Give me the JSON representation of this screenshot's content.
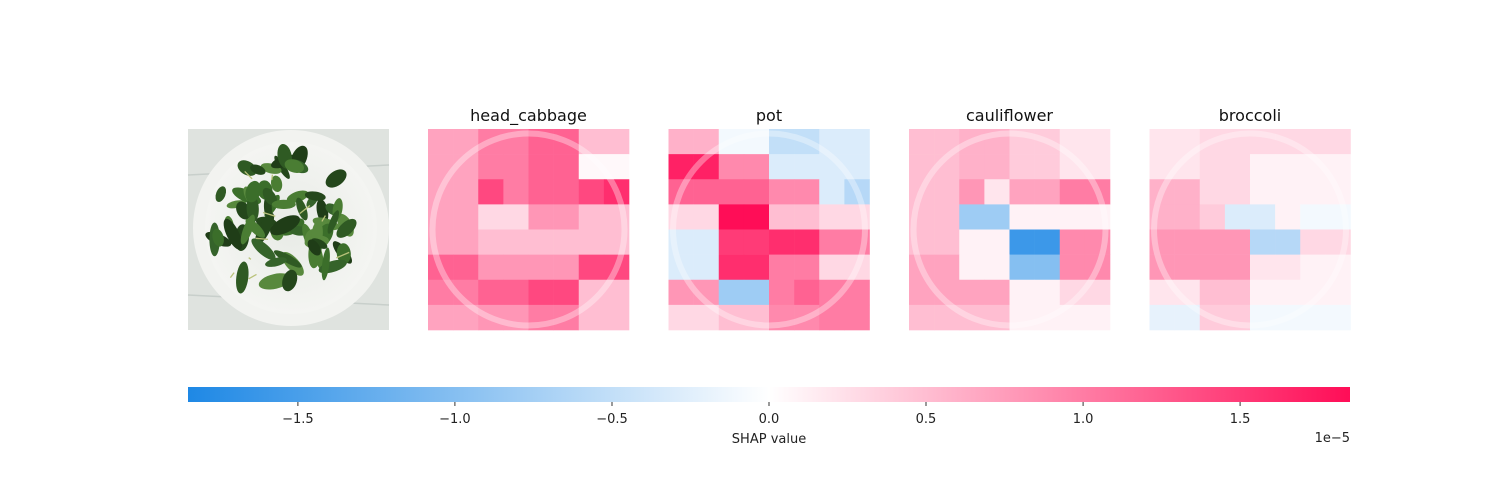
{
  "chart_data": {
    "type": "heatmap",
    "description_image": "photo of green leafy vegetables on a white plate",
    "grid": "8x8 superpixel SHAP values per class",
    "panels": [
      {
        "title": "head_cabbage",
        "values": [
          [
            0.7,
            0.7,
            1.0,
            1.0,
            1.2,
            1.2,
            0.5,
            0.5
          ],
          [
            0.7,
            0.7,
            1.0,
            1.0,
            1.2,
            1.2,
            0.05,
            0.05
          ],
          [
            0.7,
            0.7,
            1.4,
            1.0,
            1.2,
            1.2,
            1.4,
            1.6
          ],
          [
            0.7,
            0.7,
            0.3,
            0.3,
            0.8,
            0.8,
            0.5,
            0.5
          ],
          [
            0.7,
            0.7,
            0.5,
            0.5,
            0.5,
            0.5,
            0.5,
            0.5
          ],
          [
            1.2,
            1.2,
            0.8,
            0.8,
            0.8,
            0.8,
            1.4,
            1.4
          ],
          [
            1.0,
            1.0,
            1.2,
            1.2,
            1.4,
            1.4,
            0.5,
            0.5
          ],
          [
            0.7,
            0.7,
            0.8,
            0.8,
            1.0,
            1.0,
            0.5,
            0.5
          ]
        ]
      },
      {
        "title": "pot",
        "values": [
          [
            0.6,
            0.6,
            -0.1,
            -0.1,
            -0.5,
            -0.5,
            -0.3,
            -0.3
          ],
          [
            1.7,
            1.7,
            0.9,
            0.9,
            -0.3,
            -0.3,
            -0.3,
            -0.3
          ],
          [
            1.2,
            1.2,
            1.2,
            1.2,
            0.9,
            0.9,
            -0.3,
            -0.6
          ],
          [
            0.3,
            0.3,
            1.9,
            1.9,
            0.5,
            0.5,
            0.3,
            0.3
          ],
          [
            -0.3,
            -0.3,
            1.5,
            1.5,
            1.6,
            1.6,
            1.0,
            1.0
          ],
          [
            -0.3,
            -0.3,
            1.6,
            1.6,
            1.0,
            1.0,
            0.3,
            0.3
          ],
          [
            0.8,
            0.8,
            -0.8,
            -0.8,
            1.0,
            1.2,
            1.0,
            1.0
          ],
          [
            0.3,
            0.3,
            0.5,
            0.5,
            0.9,
            0.9,
            1.0,
            1.0
          ]
        ]
      },
      {
        "title": "cauliflower",
        "values": [
          [
            0.5,
            0.5,
            0.6,
            0.6,
            0.4,
            0.4,
            0.2,
            0.2
          ],
          [
            0.5,
            0.5,
            0.6,
            0.6,
            0.4,
            0.4,
            0.2,
            0.2
          ],
          [
            0.5,
            0.5,
            0.8,
            0.2,
            0.7,
            0.7,
            1.0,
            1.0
          ],
          [
            0.5,
            0.5,
            -0.8,
            -0.8,
            0.1,
            0.1,
            0.1,
            0.1
          ],
          [
            0.5,
            0.5,
            0.1,
            0.1,
            -1.6,
            -1.6,
            0.9,
            0.9
          ],
          [
            0.7,
            0.7,
            0.1,
            0.1,
            -1.0,
            -1.0,
            0.9,
            0.9
          ],
          [
            0.7,
            0.7,
            0.7,
            0.7,
            0.1,
            0.1,
            0.3,
            0.3
          ],
          [
            0.5,
            0.5,
            0.5,
            0.5,
            0.1,
            0.1,
            0.1,
            0.1
          ]
        ]
      },
      {
        "title": "broccoli",
        "values": [
          [
            0.2,
            0.2,
            0.3,
            0.3,
            0.3,
            0.3,
            0.3,
            0.3
          ],
          [
            0.2,
            0.2,
            0.3,
            0.3,
            0.1,
            0.1,
            0.1,
            0.1
          ],
          [
            0.6,
            0.6,
            0.3,
            0.3,
            0.1,
            0.1,
            0.1,
            0.1
          ],
          [
            0.6,
            0.6,
            0.4,
            -0.3,
            -0.3,
            0.1,
            -0.1,
            -0.1
          ],
          [
            0.8,
            0.8,
            0.8,
            0.8,
            -0.6,
            -0.6,
            0.3,
            0.3
          ],
          [
            0.8,
            0.8,
            0.8,
            0.8,
            0.2,
            0.2,
            0.1,
            0.1
          ],
          [
            0.2,
            0.2,
            0.5,
            0.5,
            0.1,
            0.1,
            0.1,
            0.1
          ],
          [
            -0.2,
            -0.2,
            0.4,
            0.4,
            -0.1,
            -0.1,
            -0.1,
            -0.1
          ]
        ]
      }
    ],
    "colorbar": {
      "label": "SHAP value",
      "scale_note": "1e−5",
      "range": [
        -1.85,
        1.85
      ],
      "ticks": [
        -1.5,
        -1.0,
        -0.5,
        0.0,
        0.5,
        1.0,
        1.5
      ],
      "tick_labels": [
        "−1.5",
        "−1.0",
        "−0.5",
        "0.0",
        "0.5",
        "1.0",
        "1.5"
      ],
      "negative_color": "#1e88e5",
      "positive_color": "#ff0d57"
    }
  }
}
